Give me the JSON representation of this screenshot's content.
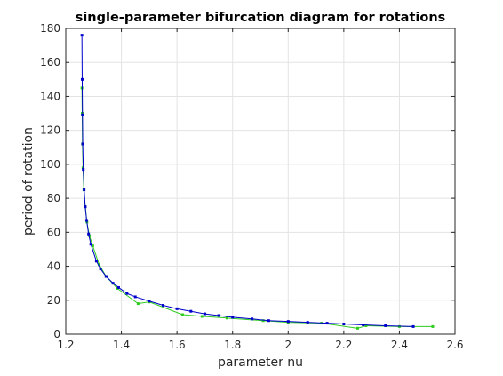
{
  "chart_data": {
    "type": "line",
    "title": "single-parameter bifurcation diagram for rotations",
    "xlabel": "parameter nu",
    "ylabel": "period of rotation",
    "xlim": [
      1.2,
      2.6
    ],
    "ylim": [
      0,
      180
    ],
    "xticks": [
      "1.2",
      "1.4",
      "1.6",
      "1.8",
      "2",
      "2.2",
      "2.4",
      "2.6"
    ],
    "yticks": [
      "0",
      "20",
      "40",
      "60",
      "80",
      "100",
      "120",
      "140",
      "160",
      "180"
    ],
    "grid": true,
    "series": [
      {
        "color": "#2ecc1f",
        "marker": "square",
        "points": [
          [
            1.258,
            145
          ],
          [
            1.259,
            130
          ],
          [
            1.26,
            112
          ],
          [
            1.262,
            98
          ],
          [
            1.265,
            85
          ],
          [
            1.27,
            75
          ],
          [
            1.276,
            66
          ],
          [
            1.285,
            58
          ],
          [
            1.297,
            52
          ],
          [
            1.32,
            41
          ],
          [
            1.345,
            34
          ],
          [
            1.385,
            27
          ],
          [
            1.46,
            18
          ],
          [
            1.5,
            19
          ],
          [
            1.62,
            11.5
          ],
          [
            1.69,
            10.5
          ],
          [
            1.78,
            9.5
          ],
          [
            1.91,
            8
          ],
          [
            2.0,
            7
          ],
          [
            2.12,
            6.5
          ],
          [
            2.25,
            3.5
          ],
          [
            2.28,
            5
          ],
          [
            2.4,
            4.5
          ],
          [
            2.52,
            4.5
          ]
        ]
      },
      {
        "color": "#0000cc",
        "marker": "square",
        "points": [
          [
            1.258,
            176
          ],
          [
            1.259,
            150
          ],
          [
            1.26,
            129
          ],
          [
            1.261,
            112
          ],
          [
            1.263,
            97
          ],
          [
            1.266,
            85
          ],
          [
            1.27,
            75
          ],
          [
            1.275,
            67
          ],
          [
            1.282,
            59
          ],
          [
            1.29,
            53
          ],
          [
            1.31,
            43
          ],
          [
            1.325,
            38.5
          ],
          [
            1.345,
            34
          ],
          [
            1.37,
            30
          ],
          [
            1.39,
            27.5
          ],
          [
            1.42,
            24
          ],
          [
            1.45,
            22
          ],
          [
            1.5,
            19.5
          ],
          [
            1.55,
            17
          ],
          [
            1.6,
            15
          ],
          [
            1.65,
            13.5
          ],
          [
            1.7,
            12
          ],
          [
            1.75,
            11
          ],
          [
            1.8,
            10
          ],
          [
            1.87,
            9
          ],
          [
            1.93,
            8
          ],
          [
            2.0,
            7.5
          ],
          [
            2.07,
            7
          ],
          [
            2.14,
            6.5
          ],
          [
            2.2,
            6
          ],
          [
            2.27,
            5.5
          ],
          [
            2.35,
            5
          ],
          [
            2.45,
            4.5
          ]
        ]
      }
    ]
  }
}
